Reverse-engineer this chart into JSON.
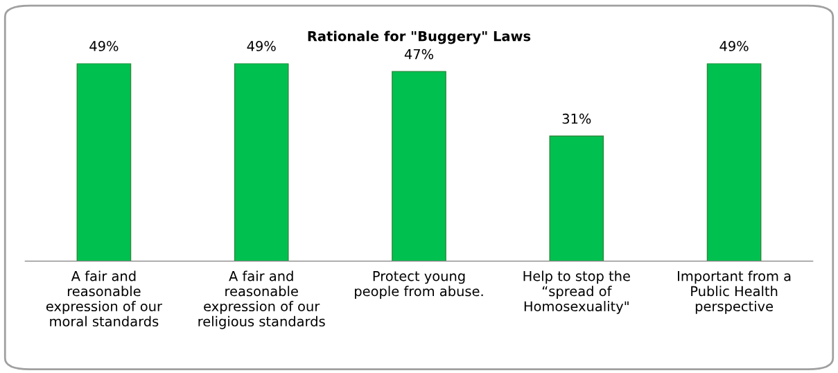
{
  "chart_data": {
    "type": "bar",
    "title": "Rationale for \"Buggery\" Laws",
    "categories": [
      "A fair and\nreasonable\nexpression of our\nmoral standards",
      "A fair and\nreasonable\nexpression of our\nreligious standards",
      "Protect young\npeople from abuse.",
      "Help to stop the\n“spread of\nHomosexuality\"",
      "Important from a\nPublic Health\nperspective"
    ],
    "values": [
      49,
      49,
      47,
      31,
      49
    ],
    "value_labels": [
      "49%",
      "49%",
      "47%",
      "31%",
      "49%"
    ],
    "color": "#00c050",
    "grid": false,
    "legend": false
  }
}
